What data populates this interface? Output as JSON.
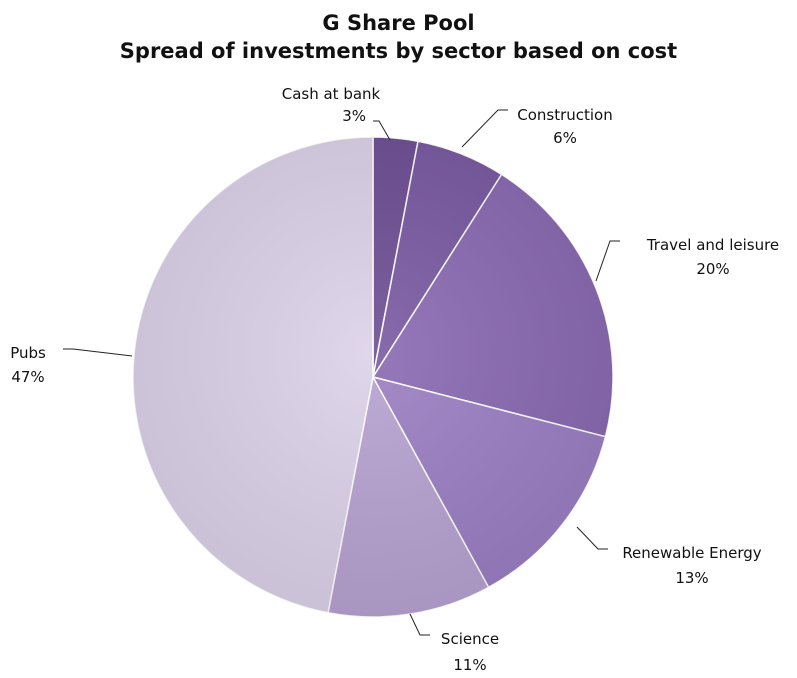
{
  "chart_data": {
    "type": "pie",
    "title": "G Share Pool",
    "subtitle": "Spread of investments by sector based on cost",
    "slices": [
      {
        "label": "Cash at bank",
        "value": 3,
        "value_label": "3%",
        "color": "#6e4f94"
      },
      {
        "label": "Construction",
        "value": 6,
        "value_label": "6%",
        "color": "#7a5aa2"
      },
      {
        "label": "Travel and leisure",
        "value": 20,
        "value_label": "20%",
        "color": "#8a6ab2"
      },
      {
        "label": "Renewable Energy",
        "value": 13,
        "value_label": "13%",
        "color": "#9b7fc3"
      },
      {
        "label": "Science",
        "value": 11,
        "value_label": "11%",
        "color": "#b7a3d2"
      },
      {
        "label": "Pubs",
        "value": 47,
        "value_label": "47%",
        "color": "#dcd2e9"
      }
    ],
    "legend": "none"
  }
}
